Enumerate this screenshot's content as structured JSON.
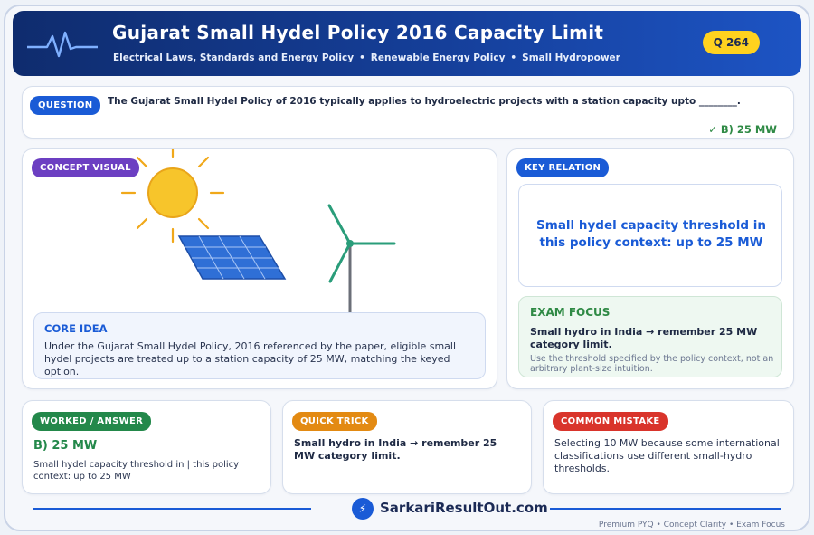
{
  "header": {
    "title": "Gujarat Small Hydel Policy 2016 Capacity Limit",
    "tags": [
      "Electrical Laws, Standards and Energy Policy",
      "Renewable Energy Policy",
      "Small Hydropower"
    ],
    "badge": "Q 264",
    "icon": "pulse-line-icon"
  },
  "question": {
    "label": "QUESTION",
    "text": "The Gujarat Small Hydel Policy of 2016 typically applies to hydroelectric projects with a station capacity upto ________.",
    "answer": "✓ B) 25 MW"
  },
  "concept": {
    "label": "CONCEPT VISUAL",
    "icons": [
      "sun-icon",
      "solar-panel-icon",
      "wind-turbine-icon"
    ],
    "core_title": "CORE IDEA",
    "core_text": "Under the Gujarat Small Hydel Policy, 2016 referenced by the paper, eligible small hydel projects are treated up to a station capacity of 25 MW, matching the keyed option."
  },
  "key_relation": {
    "label": "KEY RELATION",
    "text": "Small hydel capacity threshold in this policy context: up to 25 MW"
  },
  "exam_focus": {
    "title": "EXAM FOCUS",
    "text": "Small hydro in India → remember 25 MW category limit.",
    "note": "Use the threshold specified by the policy context, not an arbitrary plant-size intuition."
  },
  "worked": {
    "label": "WORKED / ANSWER",
    "answer": "B) 25 MW",
    "text": "Small hydel capacity threshold in | this policy context: up to 25 MW"
  },
  "trick": {
    "label": "QUICK TRICK",
    "text": "Small hydro in India → remember 25 MW category limit."
  },
  "mistake": {
    "label": "COMMON MISTAKE",
    "text": "Selecting 10 MW because some international classifications use different small-hydro thresholds."
  },
  "footer": {
    "brand": "SarkariResultOut.com",
    "brand_icon": "⚡",
    "tagline": "Premium PYQ • Concept Clarity • Exam Focus"
  },
  "colors": {
    "header_dark": "#0f2c6e",
    "header_light": "#1d54c4",
    "accent_blue": "#1a5bd6",
    "accent_green": "#23884a",
    "accent_orange": "#e38a12",
    "accent_red": "#d9342b",
    "accent_purple": "#6c3fc2",
    "badge_yellow": "#ffd21f"
  }
}
